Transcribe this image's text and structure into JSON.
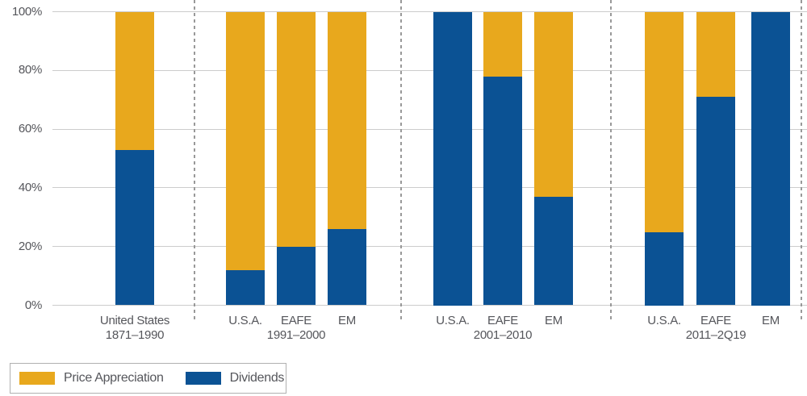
{
  "colors": {
    "price_appreciation": "#e8a81d",
    "dividends": "#0b5294",
    "gridline": "#cccccc",
    "separator": "#999999",
    "axis_text": "#55565b",
    "legend_border": "#b0b0b0"
  },
  "y_axis": {
    "tick_labels": [
      "100%",
      "80%",
      "60%",
      "40%",
      "20%",
      "0%"
    ],
    "tick_values": [
      100,
      80,
      60,
      40,
      20,
      0
    ]
  },
  "legend": {
    "items": [
      {
        "label": "Price Appreciation",
        "color_key": "price_appreciation"
      },
      {
        "label": "Dividends",
        "color_key": "dividends"
      }
    ]
  },
  "chart_data": {
    "type": "bar",
    "stacked": true,
    "value_unit": "percent",
    "ylim": [
      0,
      100
    ],
    "yticks": [
      0,
      20,
      40,
      60,
      80,
      100
    ],
    "grid": true,
    "legend_position": "bottom-left",
    "series_order_bottom_to_top": [
      "Dividends",
      "Price Appreciation"
    ],
    "groups": [
      {
        "period_label": "1871–1990",
        "bars": [
          {
            "category": "United States",
            "values": {
              "Dividends": 53,
              "Price Appreciation": 47
            }
          }
        ]
      },
      {
        "period_label": "1991–2000",
        "bars": [
          {
            "category": "U.S.A.",
            "values": {
              "Dividends": 12,
              "Price Appreciation": 88
            }
          },
          {
            "category": "EAFE",
            "values": {
              "Dividends": 20,
              "Price Appreciation": 80
            }
          },
          {
            "category": "EM",
            "values": {
              "Dividends": 26,
              "Price Appreciation": 74
            }
          }
        ]
      },
      {
        "period_label": "2001–2010",
        "bars": [
          {
            "category": "U.S.A.",
            "values": {
              "Dividends": 100,
              "Price Appreciation": 0
            }
          },
          {
            "category": "EAFE",
            "values": {
              "Dividends": 78,
              "Price Appreciation": 22
            }
          },
          {
            "category": "EM",
            "values": {
              "Dividends": 37,
              "Price Appreciation": 63
            }
          }
        ]
      },
      {
        "period_label": "2011–2Q19",
        "bars": [
          {
            "category": "U.S.A.",
            "values": {
              "Dividends": 25,
              "Price Appreciation": 75
            }
          },
          {
            "category": "EAFE",
            "values": {
              "Dividends": 71,
              "Price Appreciation": 29
            }
          },
          {
            "category": "EM",
            "values": {
              "Dividends": 100,
              "Price Appreciation": 0
            }
          }
        ]
      }
    ]
  }
}
